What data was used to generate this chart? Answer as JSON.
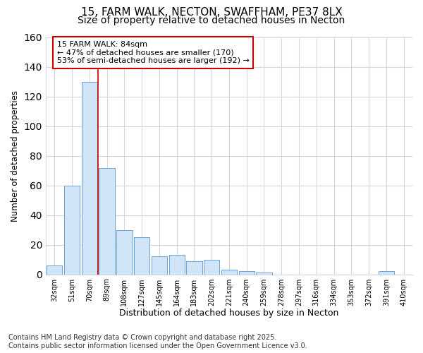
{
  "title_line1": "15, FARM WALK, NECTON, SWAFFHAM, PE37 8LX",
  "title_line2": "Size of property relative to detached houses in Necton",
  "xlabel": "Distribution of detached houses by size in Necton",
  "ylabel": "Number of detached properties",
  "footnote1": "Contains HM Land Registry data © Crown copyright and database right 2025.",
  "footnote2": "Contains public sector information licensed under the Open Government Licence v3.0.",
  "annotation_line1": "15 FARM WALK: 84sqm",
  "annotation_line2": "← 47% of detached houses are smaller (170)",
  "annotation_line3": "53% of semi-detached houses are larger (192) →",
  "bar_labels": [
    "32sqm",
    "51sqm",
    "70sqm",
    "89sqm",
    "108sqm",
    "127sqm",
    "145sqm",
    "164sqm",
    "183sqm",
    "202sqm",
    "221sqm",
    "240sqm",
    "259sqm",
    "278sqm",
    "297sqm",
    "316sqm",
    "334sqm",
    "353sqm",
    "372sqm",
    "391sqm",
    "410sqm"
  ],
  "bar_values": [
    6,
    60,
    130,
    72,
    30,
    25,
    12,
    13,
    9,
    10,
    3,
    2,
    1,
    0,
    0,
    0,
    0,
    0,
    0,
    2,
    0
  ],
  "bar_color": "#d0e4f7",
  "bar_edge_color": "#6ba3d6",
  "red_line_x": 2.5,
  "ylim": [
    0,
    160
  ],
  "yticks": [
    0,
    20,
    40,
    60,
    80,
    100,
    120,
    140,
    160
  ],
  "background_color": "#ffffff",
  "grid_color": "#d0d8e8",
  "annotation_box_facecolor": "#ffffff",
  "annotation_box_edge": "#cc0000",
  "red_line_color": "#cc0000",
  "title_fontsize": 11,
  "subtitle_fontsize": 10,
  "footnote_fontsize": 7
}
